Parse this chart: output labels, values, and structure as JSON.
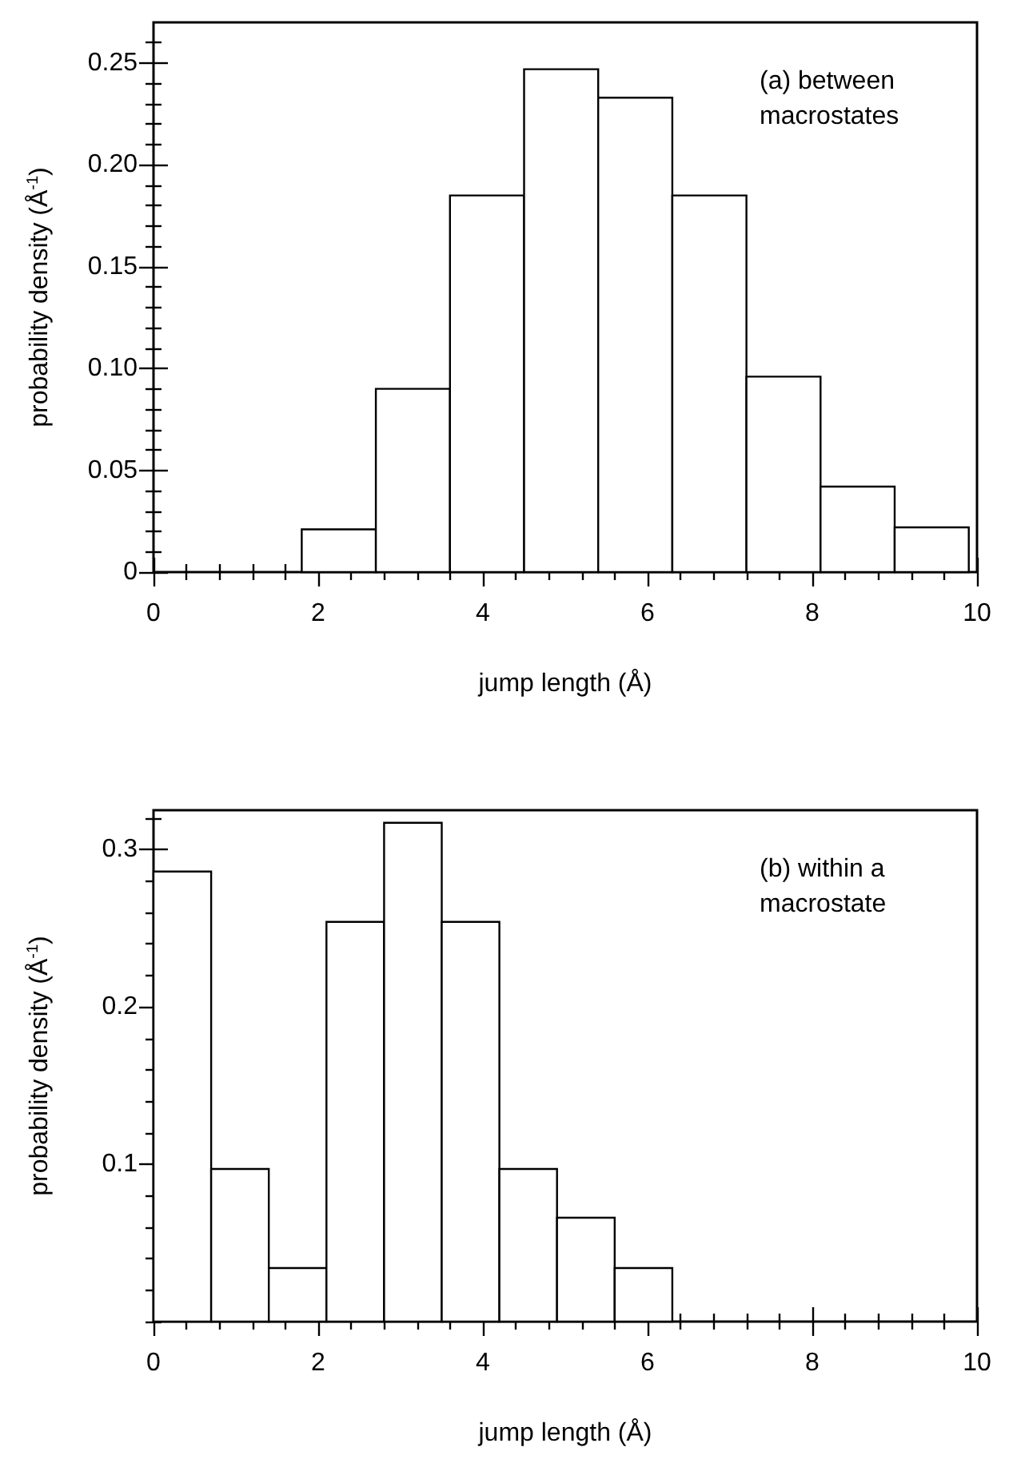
{
  "chart_data": [
    {
      "type": "histogram",
      "bins": [
        0,
        0.9,
        1.8,
        2.7,
        3.6,
        4.5,
        5.4,
        6.3,
        7.2,
        8.1,
        9.0,
        9.9
      ],
      "values": [
        0,
        0,
        0.021,
        0.09,
        0.185,
        0.247,
        0.233,
        0.185,
        0.096,
        0.042,
        0.022
      ],
      "color": "#ffffff",
      "xlabel": "jump length (Å)",
      "ylabel": "probability density (Å$^{-1}$)",
      "xlim": [
        0,
        10
      ],
      "ylim": [
        0,
        0.27
      ],
      "xticks": [
        0,
        {
          "value": 0.4,
          "label": null
        },
        {
          "value": 0.8,
          "label": null
        },
        {
          "value": 1.2,
          "label": null
        },
        {
          "value": 1.6,
          "label": null
        },
        2,
        {
          "value": 2.4,
          "label": null
        },
        {
          "value": 2.8,
          "label": null
        },
        {
          "value": 3.2,
          "label": null
        },
        {
          "value": 3.6,
          "label": null
        },
        4,
        {
          "value": 4.4,
          "label": null
        },
        {
          "value": 4.8,
          "label": null
        },
        {
          "value": 5.2,
          "label": null
        },
        {
          "value": 5.6,
          "label": null
        },
        6,
        {
          "value": 6.4,
          "label": null
        },
        {
          "value": 6.8,
          "label": null
        },
        {
          "value": 7.2,
          "label": null
        },
        {
          "value": 7.6,
          "label": null
        },
        8,
        {
          "value": 8.4,
          "label": null
        },
        {
          "value": 8.8,
          "label": null
        },
        {
          "value": 9.2,
          "label": null
        },
        {
          "value": 9.6,
          "label": null
        },
        10
      ],
      "yticks": [
        0,
        {
          "value": 0.01,
          "label": null
        },
        {
          "value": 0.02,
          "label": null
        },
        {
          "value": 0.03,
          "label": null
        },
        {
          "value": 0.04,
          "label": null
        },
        0.05,
        {
          "value": 0.06,
          "label": null
        },
        {
          "value": 0.07,
          "label": null
        },
        {
          "value": 0.08,
          "label": null
        },
        {
          "value": 0.09,
          "label": null
        },
        {
          "value": 0.1,
          "label": "0.10"
        },
        {
          "value": 0.11,
          "label": null
        },
        {
          "value": 0.12,
          "label": null
        },
        {
          "value": 0.13,
          "label": null
        },
        {
          "value": 0.14,
          "label": null
        },
        0.15,
        {
          "value": 0.16,
          "label": null
        },
        {
          "value": 0.17,
          "label": null
        },
        {
          "value": 0.18,
          "label": null
        },
        {
          "value": 0.19,
          "label": null
        },
        {
          "value": 0.2,
          "label": "0.20"
        },
        {
          "value": 0.21,
          "label": null
        },
        {
          "value": 0.22,
          "label": null
        },
        {
          "value": 0.23,
          "label": null
        },
        {
          "value": 0.24,
          "label": null
        },
        0.25,
        {
          "value": 0.26,
          "label": null
        }
      ],
      "annotations": [
        "(a) between macrostates"
      ]
    },
    {
      "type": "histogram",
      "bins": [
        0,
        0.7,
        1.4,
        2.1,
        2.8,
        3.5,
        4.2,
        4.9,
        5.6,
        6.3,
        7.0,
        7.7,
        8.4,
        9.1,
        9.8
      ],
      "values": [
        0.286,
        0.097,
        0.034,
        0.254,
        0.317,
        0.254,
        0.097,
        0.066,
        0.034,
        0,
        0,
        0,
        0,
        0
      ],
      "color": "#ffffff",
      "xlabel": "jump length (Å)",
      "ylabel": "probability density (Å$^{-1}$)",
      "xlim": [
        0,
        10
      ],
      "ylim": [
        0,
        0.325
      ],
      "xticks": [
        0,
        {
          "value": 0.4,
          "label": null
        },
        {
          "value": 0.8,
          "label": null
        },
        {
          "value": 1.2,
          "label": null
        },
        {
          "value": 1.6,
          "label": null
        },
        2,
        {
          "value": 2.4,
          "label": null
        },
        {
          "value": 2.8,
          "label": null
        },
        {
          "value": 3.2,
          "label": null
        },
        {
          "value": 3.6,
          "label": null
        },
        4,
        {
          "value": 4.4,
          "label": null
        },
        {
          "value": 4.8,
          "label": null
        },
        {
          "value": 5.2,
          "label": null
        },
        {
          "value": 5.6,
          "label": null
        },
        6,
        {
          "value": 6.4,
          "label": null
        },
        {
          "value": 6.8,
          "label": null
        },
        {
          "value": 7.2,
          "label": null
        },
        {
          "value": 7.6,
          "label": null
        },
        8,
        {
          "value": 8.4,
          "label": null
        },
        {
          "value": 8.8,
          "label": null
        },
        {
          "value": 9.2,
          "label": null
        },
        {
          "value": 9.6,
          "label": null
        },
        10
      ],
      "yticks": [
        {
          "value": 0,
          "label": null
        },
        {
          "value": 0.02,
          "label": null
        },
        {
          "value": 0.04,
          "label": null
        },
        {
          "value": 0.06,
          "label": null
        },
        {
          "value": 0.08,
          "label": null
        },
        0.1,
        {
          "value": 0.12,
          "label": null
        },
        {
          "value": 0.14,
          "label": null
        },
        {
          "value": 0.16,
          "label": null
        },
        {
          "value": 0.18,
          "label": null
        },
        0.2,
        {
          "value": 0.22,
          "label": null
        },
        {
          "value": 0.24,
          "label": null
        },
        {
          "value": 0.26,
          "label": null
        },
        {
          "value": 0.28,
          "label": null
        },
        0.3,
        {
          "value": 0.32,
          "label": null
        }
      ],
      "annotations": [
        "(b) within a macrostate"
      ]
    }
  ]
}
